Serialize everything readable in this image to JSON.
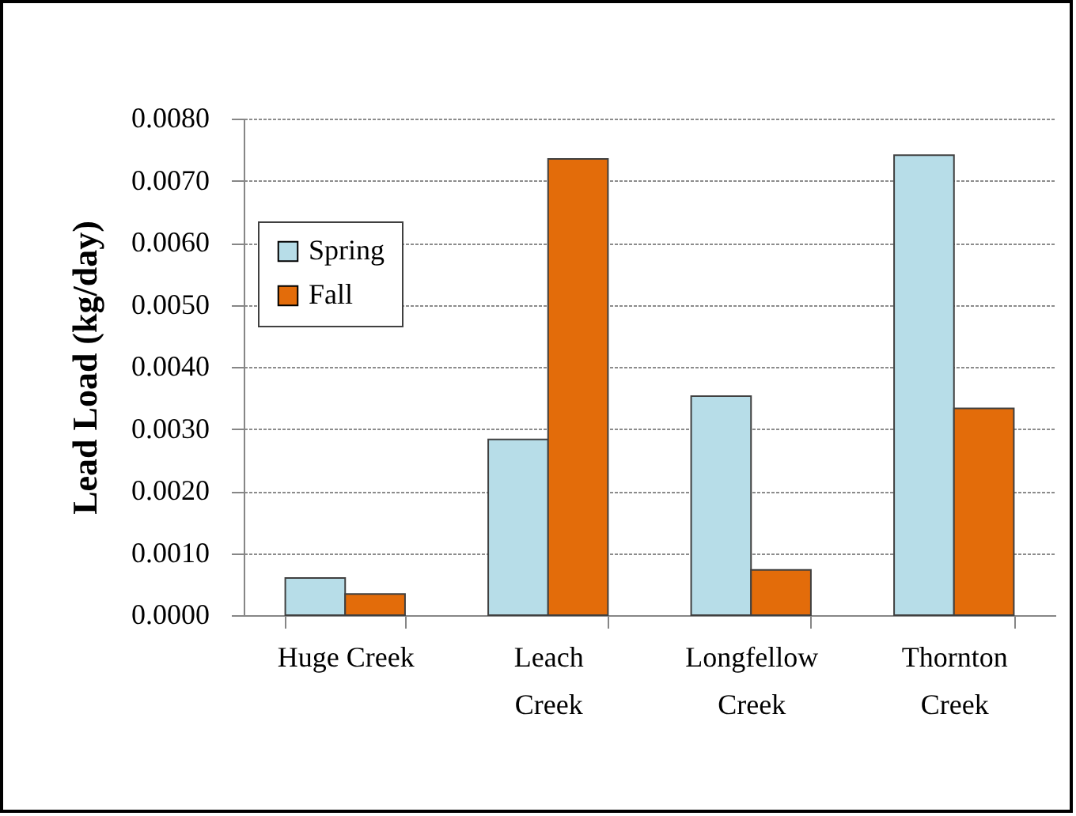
{
  "chart_data": {
    "type": "bar",
    "ylabel": "Lead Load (kg/day)",
    "categories": [
      "Huge Creek",
      "Leach Creek",
      "Longfellow Creek",
      "Thornton Creek"
    ],
    "series": [
      {
        "name": "Spring",
        "color": "#b7dde8",
        "values": [
          0.0006,
          0.00283,
          0.00353,
          0.00741
        ]
      },
      {
        "name": "Fall",
        "color": "#e36c0a",
        "values": [
          0.00034,
          0.00735,
          0.00073,
          0.00333
        ]
      }
    ],
    "ylim": [
      0,
      0.008
    ],
    "yticks": [
      {
        "value": 0,
        "label": "0.0000"
      },
      {
        "value": 0.001,
        "label": "0.0010"
      },
      {
        "value": 0.002,
        "label": "0.0020"
      },
      {
        "value": 0.003,
        "label": "0.0030"
      },
      {
        "value": 0.004,
        "label": "0.0040"
      },
      {
        "value": 0.005,
        "label": "0.0050"
      },
      {
        "value": 0.006,
        "label": "0.0060"
      },
      {
        "value": 0.007,
        "label": "0.0070"
      },
      {
        "value": 0.008,
        "label": "0.0080"
      }
    ],
    "grid": "y",
    "legend": "top left"
  }
}
